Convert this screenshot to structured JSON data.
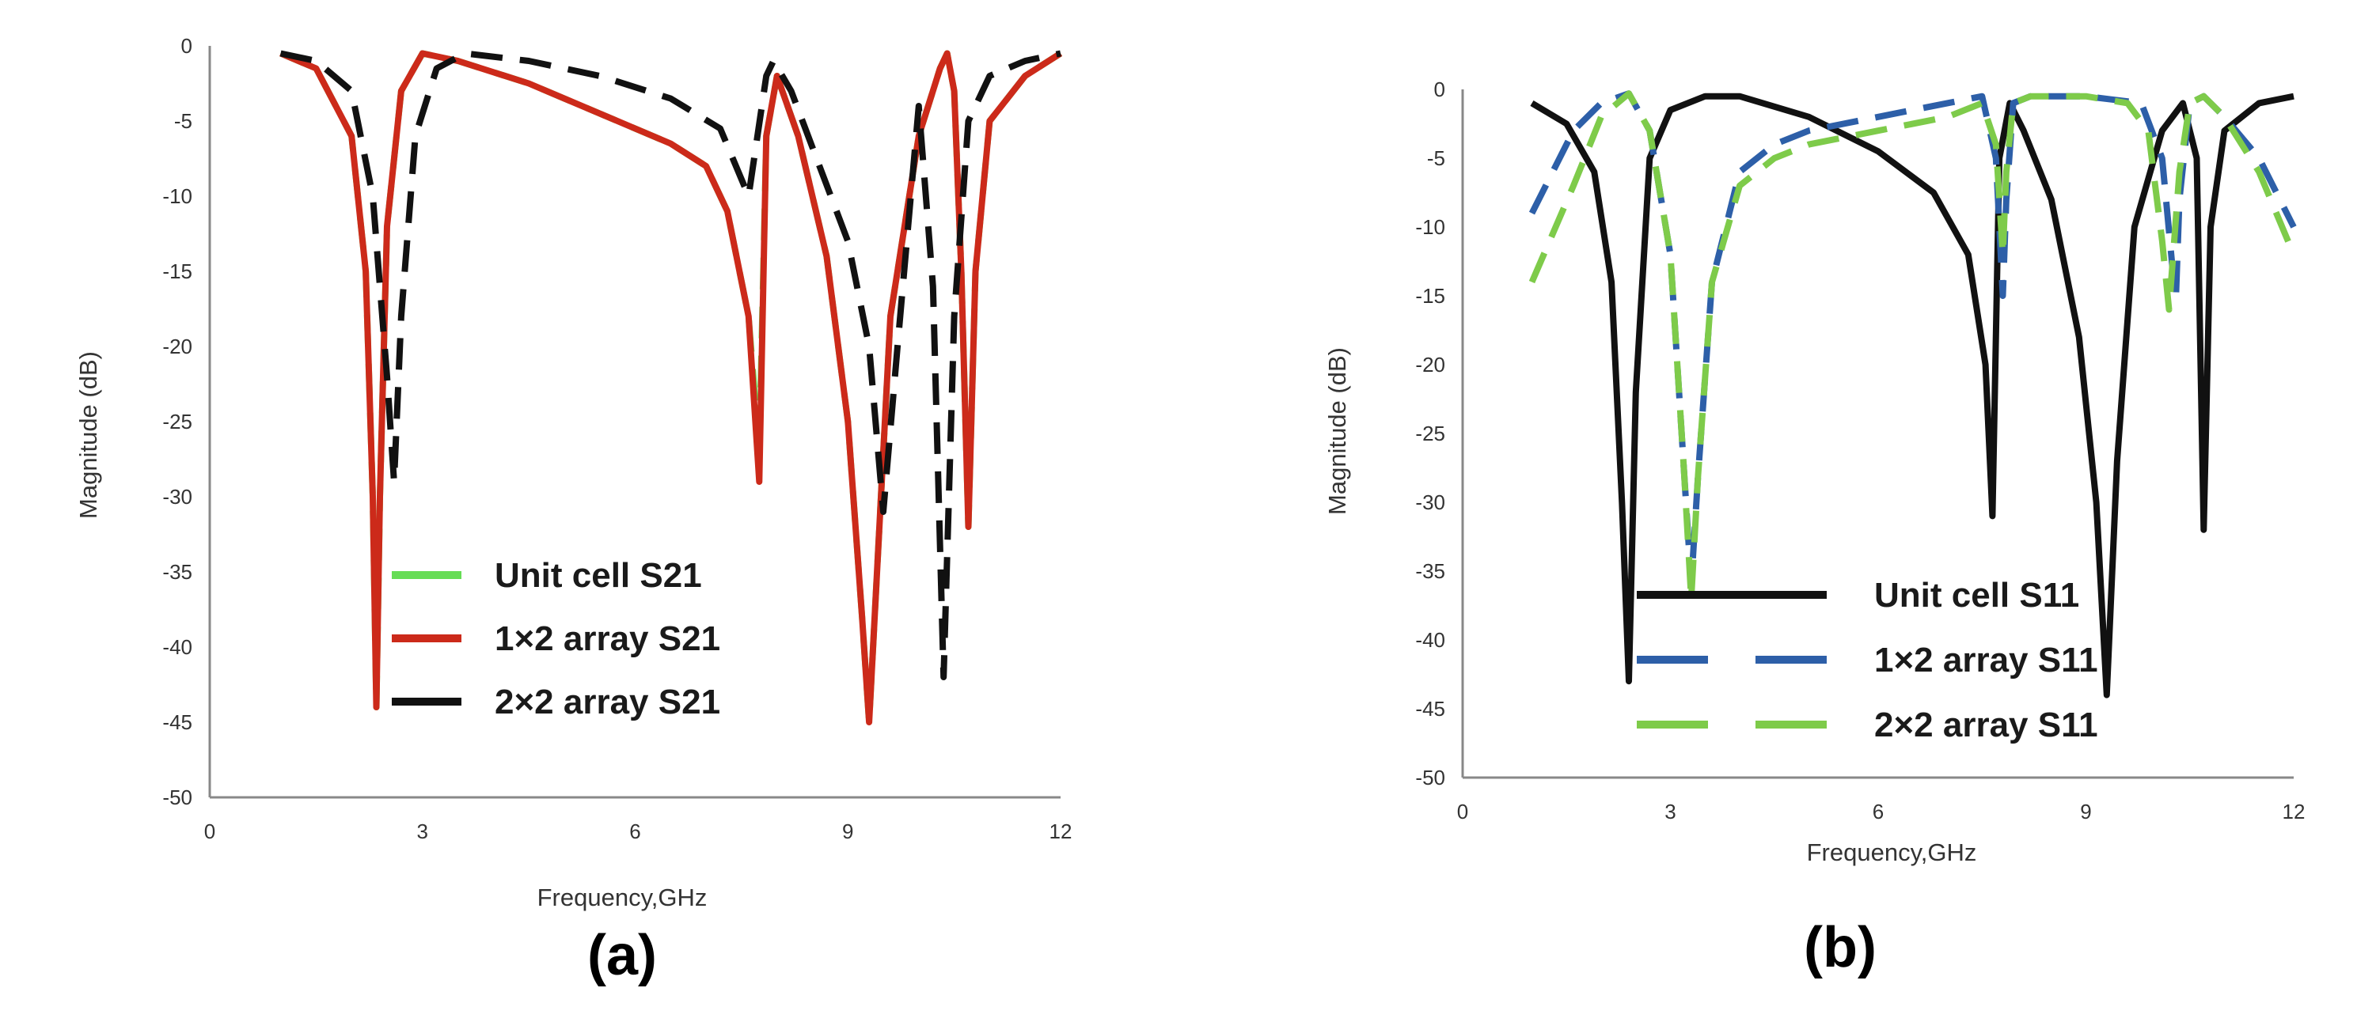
{
  "chart_data": [
    {
      "type": "line",
      "panel_label": "(a)",
      "xlabel": "Frequency,GHz",
      "ylabel": "Magnitude (dB)",
      "xlim": [
        0,
        12
      ],
      "ylim": [
        -50,
        0
      ],
      "x_ticks": [
        0,
        3,
        6,
        9,
        12
      ],
      "y_ticks": [
        0,
        -5,
        -10,
        -15,
        -20,
        -25,
        -30,
        -35,
        -40,
        -45,
        -50
      ],
      "grid": false,
      "legend_position": "lower-left",
      "series": [
        {
          "name": "Unit cell S21",
          "color": "#66dd55",
          "style": "dashed",
          "x": [
            1.0,
            1.5,
            2.0,
            2.2,
            2.3,
            2.35,
            2.4,
            2.5,
            2.7,
            3.0,
            3.5,
            4.5,
            5.5,
            6.5,
            7.0,
            7.3,
            7.6,
            7.75,
            7.85,
            8.0,
            8.3,
            8.7,
            9.0,
            9.2,
            9.3,
            9.4,
            9.6,
            10.0,
            10.3,
            10.4,
            10.5,
            10.6,
            10.7,
            10.8,
            11.0,
            11.5,
            12.0
          ],
          "y": [
            -0.5,
            -1.5,
            -6,
            -15,
            -30,
            -44,
            -30,
            -12,
            -3,
            -0.5,
            -1,
            -2.5,
            -4.5,
            -6.5,
            -8,
            -11,
            -18,
            -27,
            -6,
            -2,
            -6,
            -14,
            -25,
            -38,
            -45,
            -36,
            -18,
            -6,
            -1.5,
            -0.5,
            -3,
            -15,
            -32,
            -15,
            -5,
            -2,
            -0.5
          ]
        },
        {
          "name": "1×2 array S21",
          "color": "#cc2a1a",
          "style": "solid",
          "x": [
            1.0,
            1.5,
            2.0,
            2.2,
            2.3,
            2.35,
            2.4,
            2.5,
            2.7,
            3.0,
            3.5,
            4.5,
            5.5,
            6.5,
            7.0,
            7.3,
            7.6,
            7.75,
            7.85,
            8.0,
            8.3,
            8.7,
            9.0,
            9.2,
            9.3,
            9.4,
            9.6,
            10.0,
            10.3,
            10.4,
            10.5,
            10.6,
            10.7,
            10.8,
            11.0,
            11.5,
            12.0
          ],
          "y": [
            -0.5,
            -1.5,
            -6,
            -15,
            -30,
            -44,
            -30,
            -12,
            -3,
            -0.5,
            -1,
            -2.5,
            -4.5,
            -6.5,
            -8,
            -11,
            -18,
            -29,
            -6,
            -2,
            -6,
            -14,
            -25,
            -38,
            -45,
            -36,
            -18,
            -6,
            -1.5,
            -0.5,
            -3,
            -15,
            -32,
            -15,
            -5,
            -2,
            -0.5
          ]
        },
        {
          "name": "2×2 array S21",
          "color": "#111111",
          "style": "dashed",
          "x": [
            1.0,
            1.5,
            2.0,
            2.3,
            2.5,
            2.6,
            2.7,
            2.9,
            3.2,
            3.6,
            4.5,
            5.5,
            6.5,
            7.2,
            7.6,
            7.85,
            7.95,
            8.2,
            8.6,
            9.0,
            9.3,
            9.5,
            9.7,
            10.0,
            10.2,
            10.35,
            10.5,
            10.7,
            11.0,
            11.5,
            12.0
          ],
          "y": [
            -0.5,
            -1,
            -3,
            -10,
            -22,
            -29,
            -18,
            -6,
            -1.5,
            -0.5,
            -1,
            -2,
            -3.5,
            -5.5,
            -10,
            -2,
            -1,
            -3,
            -8,
            -13,
            -20,
            -31,
            -20,
            -4,
            -16,
            -42,
            -18,
            -5,
            -2,
            -1,
            -0.5
          ]
        }
      ]
    },
    {
      "type": "line",
      "panel_label": "(b)",
      "xlabel": "Frequency,GHz",
      "ylabel": "Magnitude (dB)",
      "xlim": [
        0,
        12
      ],
      "ylim": [
        -50,
        0
      ],
      "x_ticks": [
        0,
        3,
        6,
        9,
        12
      ],
      "y_ticks": [
        0,
        -5,
        -10,
        -15,
        -20,
        -25,
        -30,
        -35,
        -40,
        -45,
        -50
      ],
      "grid": false,
      "legend_position": "lower-right",
      "series": [
        {
          "name": "Unit cell S11",
          "color": "#111111",
          "style": "solid",
          "x": [
            1.0,
            1.5,
            1.9,
            2.15,
            2.3,
            2.4,
            2.5,
            2.7,
            3.0,
            3.5,
            4.0,
            5.0,
            6.0,
            6.8,
            7.3,
            7.55,
            7.65,
            7.75,
            7.9,
            8.1,
            8.5,
            8.9,
            9.15,
            9.3,
            9.45,
            9.7,
            10.1,
            10.4,
            10.6,
            10.7,
            10.8,
            11.0,
            11.5,
            12.0
          ],
          "y": [
            -1,
            -2.5,
            -6,
            -14,
            -30,
            -43,
            -22,
            -5,
            -1.5,
            -0.5,
            -0.5,
            -2,
            -4.5,
            -7.5,
            -12,
            -20,
            -31,
            -5,
            -1,
            -3,
            -8,
            -18,
            -30,
            -44,
            -27,
            -10,
            -3,
            -1,
            -5,
            -32,
            -10,
            -3,
            -1,
            -0.5
          ]
        },
        {
          "name": "1×2 array S11",
          "color": "#2d5fa8",
          "style": "dashed",
          "x": [
            1.0,
            1.6,
            2.0,
            2.4,
            2.7,
            3.0,
            3.2,
            3.3,
            3.4,
            3.6,
            4.0,
            4.5,
            5.0,
            6.0,
            7.0,
            7.5,
            7.7,
            7.8,
            7.85,
            7.95,
            8.2,
            9.0,
            9.8,
            10.1,
            10.25,
            10.3,
            10.35,
            10.5,
            10.7,
            11.0,
            11.5,
            12.0
          ],
          "y": [
            -9,
            -3,
            -1,
            -0.3,
            -3,
            -12,
            -28,
            -36,
            -28,
            -14,
            -6,
            -4,
            -3,
            -2,
            -1,
            -0.5,
            -5,
            -15,
            -8,
            -1,
            -0.5,
            -0.5,
            -1,
            -5,
            -13,
            -15,
            -8,
            -1,
            -0.5,
            -2,
            -5,
            -10
          ]
        },
        {
          "name": "2×2 array S11",
          "color": "#7ecb4a",
          "style": "dashed",
          "x": [
            1.0,
            1.6,
            2.0,
            2.4,
            2.7,
            3.0,
            3.2,
            3.3,
            3.4,
            3.6,
            4.0,
            4.5,
            5.0,
            6.0,
            7.0,
            7.5,
            7.7,
            7.8,
            7.85,
            7.95,
            8.2,
            9.0,
            9.6,
            9.9,
            10.1,
            10.2,
            10.35,
            10.5,
            10.7,
            11.0,
            11.5,
            12.0
          ],
          "y": [
            -14,
            -7,
            -2,
            -0.3,
            -3,
            -12,
            -28,
            -37,
            -28,
            -14,
            -7,
            -5,
            -4,
            -3,
            -2,
            -1,
            -4,
            -12,
            -6,
            -1,
            -0.5,
            -0.5,
            -1,
            -3,
            -11,
            -16,
            -6,
            -1,
            -0.5,
            -2,
            -6,
            -12
          ]
        }
      ]
    }
  ]
}
